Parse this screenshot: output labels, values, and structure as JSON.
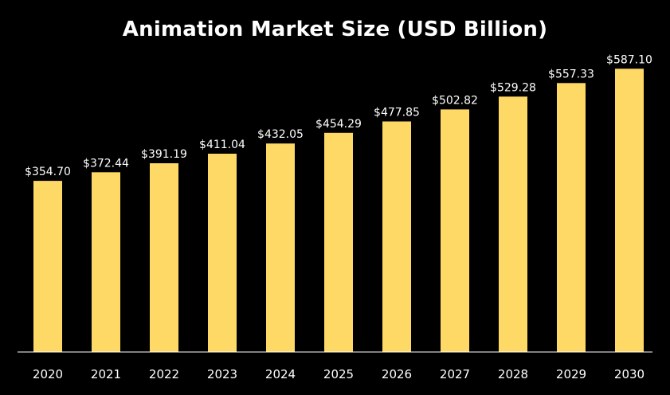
{
  "chart_data": {
    "type": "bar",
    "title": "Animation Market Size (USD Billion)",
    "xlabel": "",
    "ylabel": "",
    "categories": [
      "2020",
      "2021",
      "2022",
      "2023",
      "2024",
      "2025",
      "2026",
      "2027",
      "2028",
      "2029",
      "2030"
    ],
    "values": [
      354.7,
      372.44,
      391.19,
      411.04,
      432.05,
      454.29,
      477.85,
      502.82,
      529.28,
      557.33,
      587.1
    ],
    "data_labels": [
      "$354.70",
      "$372.44",
      "$391.19",
      "$411.04",
      "$432.05",
      "$454.29",
      "$477.85",
      "$502.82",
      "$529.28",
      "$557.33",
      "$587.10"
    ],
    "ylim": [
      0,
      680
    ],
    "grid": false,
    "legend": "none",
    "colors": {
      "background": "#000000",
      "bar": "#FFD966",
      "text": "#ffffff",
      "axis": "#ffffff"
    }
  }
}
